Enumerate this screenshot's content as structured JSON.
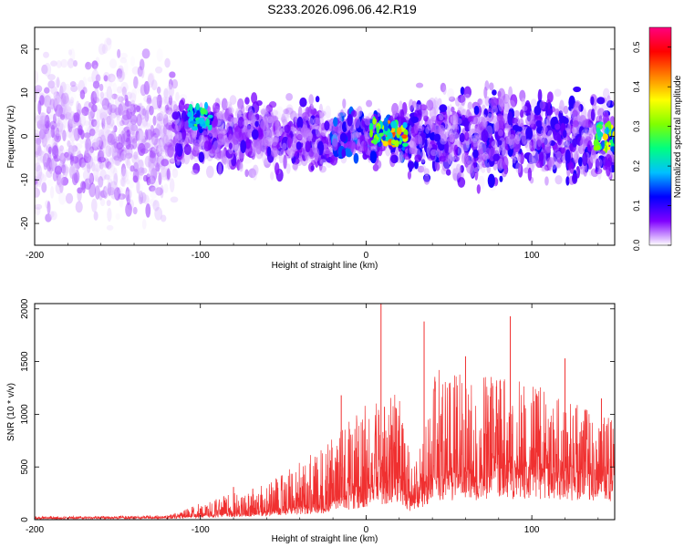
{
  "title": "S233.2026.096.06.42.R19",
  "chart_data": [
    {
      "type": "heatmap",
      "xlabel": "Height of straight line (km)",
      "ylabel": "Frequency (Hz)",
      "xlim": [
        -200,
        150
      ],
      "ylim": [
        -25,
        25
      ],
      "xticks": [
        -200,
        -100,
        0,
        100
      ],
      "yticks": [
        -20,
        -10,
        0,
        10,
        20
      ],
      "colorbar": {
        "label": "Normalized spectral amplitude",
        "range": [
          0.0,
          0.55
        ],
        "ticks": [
          0.0,
          0.1,
          0.2,
          0.3,
          0.4,
          0.5
        ],
        "colormap": [
          "#ffffff",
          "#8000ff",
          "#0000ff",
          "#00c0ff",
          "#00ff80",
          "#80ff00",
          "#ffff00",
          "#ff8000",
          "#ff0000",
          "#ff0080"
        ]
      },
      "regions": [
        {
          "x": [
            -200,
            -115
          ],
          "freq_halfwidth": 25,
          "typical_amplitude": 0.03
        },
        {
          "x": [
            -115,
            -20
          ],
          "freq_halfwidth": 8,
          "typical_amplitude": 0.06
        },
        {
          "x": [
            -20,
            25
          ],
          "freq_halfwidth": 6,
          "typical_amplitude": 0.1
        },
        {
          "x": [
            25,
            150
          ],
          "freq_halfwidth": 10,
          "typical_amplitude": 0.07
        }
      ],
      "hotspots": [
        {
          "x": 17,
          "freq": 1,
          "amplitude": 0.42
        },
        {
          "x": 145,
          "freq": 0,
          "amplitude": 0.35
        },
        {
          "x": -100,
          "freq": 4,
          "amplitude": 0.25
        },
        {
          "x": 10,
          "freq": 1,
          "amplitude": 0.3
        }
      ]
    },
    {
      "type": "line",
      "color": "#f03030",
      "xlabel": "Height of straight line (km)",
      "ylabel": "SNR (10 * v/v)",
      "xlim": [
        -200,
        150
      ],
      "ylim": [
        0,
        2050
      ],
      "xticks": [
        -200,
        -100,
        0,
        100
      ],
      "yticks": [
        0,
        500,
        1000,
        1500,
        2000
      ],
      "envelope": [
        {
          "x": -200,
          "base": 15,
          "peak": 30
        },
        {
          "x": -120,
          "base": 20,
          "peak": 40
        },
        {
          "x": -100,
          "base": 40,
          "peak": 160
        },
        {
          "x": -60,
          "base": 80,
          "peak": 350
        },
        {
          "x": -25,
          "base": 150,
          "peak": 700
        },
        {
          "x": 0,
          "base": 300,
          "peak": 1100
        },
        {
          "x": 20,
          "base": 420,
          "peak": 1200
        },
        {
          "x": 28,
          "base": 150,
          "peak": 500
        },
        {
          "x": 40,
          "base": 430,
          "peak": 1450
        },
        {
          "x": 100,
          "base": 500,
          "peak": 1300
        },
        {
          "x": 150,
          "base": 400,
          "peak": 950
        }
      ],
      "spikes": [
        {
          "x": -80,
          "value": 310
        },
        {
          "x": -15,
          "value": 1180
        },
        {
          "x": 9,
          "value": 2050
        },
        {
          "x": 35,
          "value": 1880
        },
        {
          "x": 60,
          "value": 1550
        },
        {
          "x": 87,
          "value": 1930
        },
        {
          "x": 120,
          "value": 1530
        },
        {
          "x": 142,
          "value": 1150
        }
      ]
    }
  ]
}
